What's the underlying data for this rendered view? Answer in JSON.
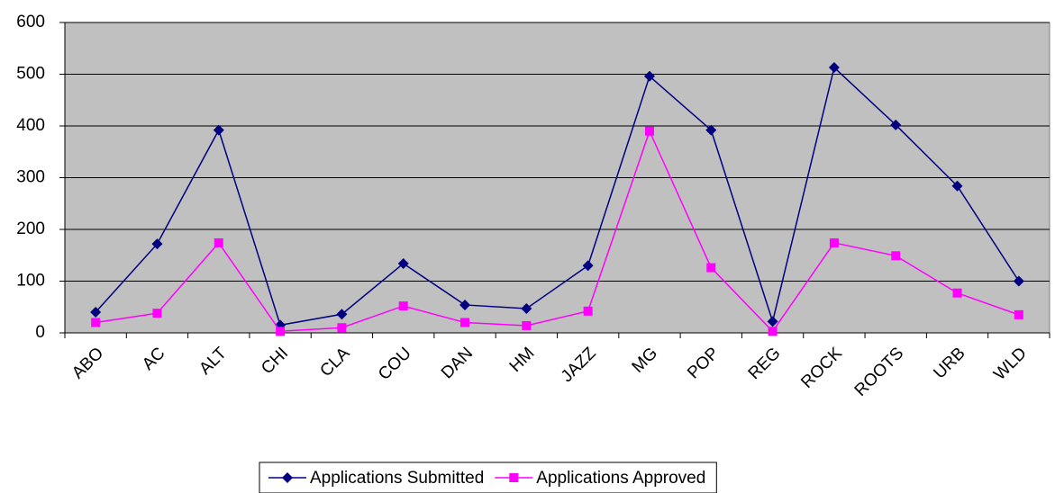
{
  "chart_data": {
    "type": "line",
    "categories": [
      "ABO",
      "AC",
      "ALT",
      "CHI",
      "CLA",
      "COU",
      "DAN",
      "HM",
      "JAZZ",
      "MG",
      "POP",
      "REG",
      "ROCK",
      "ROOTS",
      "URB",
      "WLD"
    ],
    "series": [
      {
        "name": "Applications Submitted",
        "color": "#000080",
        "marker": "diamond",
        "values": [
          40,
          172,
          392,
          15,
          36,
          134,
          54,
          47,
          130,
          496,
          392,
          22,
          513,
          402,
          284,
          100
        ]
      },
      {
        "name": "Applications Approved",
        "color": "#ff00ff",
        "marker": "square",
        "values": [
          20,
          38,
          174,
          3,
          10,
          52,
          20,
          14,
          42,
          390,
          126,
          3,
          174,
          149,
          77,
          35
        ]
      }
    ],
    "ylim": [
      0,
      600
    ],
    "yticks": [
      0,
      100,
      200,
      300,
      400,
      500,
      600
    ],
    "grid": true,
    "plot_background": "#c0c0c0",
    "legend": "bottom"
  }
}
